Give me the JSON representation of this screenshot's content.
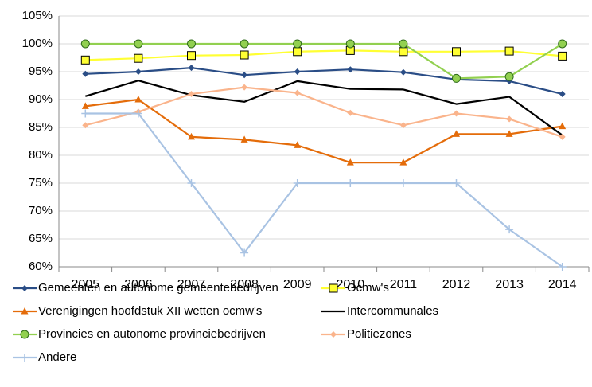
{
  "chart_data": {
    "type": "line",
    "categories": [
      "2005",
      "2006",
      "2007",
      "2008",
      "2009",
      "2010",
      "2011",
      "2012",
      "2013",
      "2014"
    ],
    "ylim": [
      60,
      105
    ],
    "yticks": [
      {
        "value": 60,
        "label": "60%"
      },
      {
        "value": 65,
        "label": "65%"
      },
      {
        "value": 70,
        "label": "70%"
      },
      {
        "value": 75,
        "label": "75%"
      },
      {
        "value": 80,
        "label": "80%"
      },
      {
        "value": 85,
        "label": "85%"
      },
      {
        "value": 90,
        "label": "90%"
      },
      {
        "value": 95,
        "label": "95%"
      },
      {
        "value": 100,
        "label": "100%"
      },
      {
        "value": 105,
        "label": "105%"
      }
    ],
    "grid": true,
    "series": [
      {
        "name": "Gemeenten en autonome gemeentebedrijven",
        "color": "#2a4d86",
        "marker": "diamond",
        "values": [
          94.6,
          95.0,
          95.7,
          94.4,
          95.0,
          95.4,
          94.9,
          93.6,
          93.3,
          91.0
        ]
      },
      {
        "name": "Ocmw's",
        "color": "#ffff33",
        "marker": "square",
        "values": [
          97.1,
          97.4,
          97.9,
          98.0,
          98.6,
          98.8,
          98.6,
          98.6,
          98.7,
          97.8
        ]
      },
      {
        "name": "Verenigingen hoofdstuk XII wetten ocmw's",
        "color": "#e46c0a",
        "marker": "triangle",
        "values": [
          88.8,
          90.0,
          83.3,
          82.8,
          81.8,
          78.7,
          78.7,
          83.8,
          83.8,
          85.2
        ]
      },
      {
        "name": "Intercommunales",
        "color": "#000000",
        "marker": "none",
        "values": [
          90.6,
          93.4,
          90.8,
          89.6,
          93.3,
          91.9,
          91.8,
          89.2,
          90.5,
          83.6
        ]
      },
      {
        "name": "Provincies en autonome provinciebedrijven",
        "color": "#92d050",
        "marker": "circle",
        "values": [
          100,
          100,
          100,
          100,
          100,
          100,
          100,
          93.8,
          94.1,
          100
        ]
      },
      {
        "name": "Politiezones",
        "color": "#fab48c",
        "marker": "diamond",
        "values": [
          85.4,
          87.8,
          91.0,
          92.2,
          91.2,
          87.6,
          85.4,
          87.5,
          86.5,
          83.3
        ]
      },
      {
        "name": "Andere",
        "color": "#a9c3e3",
        "marker": "plus",
        "values": [
          87.5,
          87.5,
          75,
          62.5,
          75,
          75,
          75,
          75,
          66.7,
          60
        ]
      }
    ]
  }
}
